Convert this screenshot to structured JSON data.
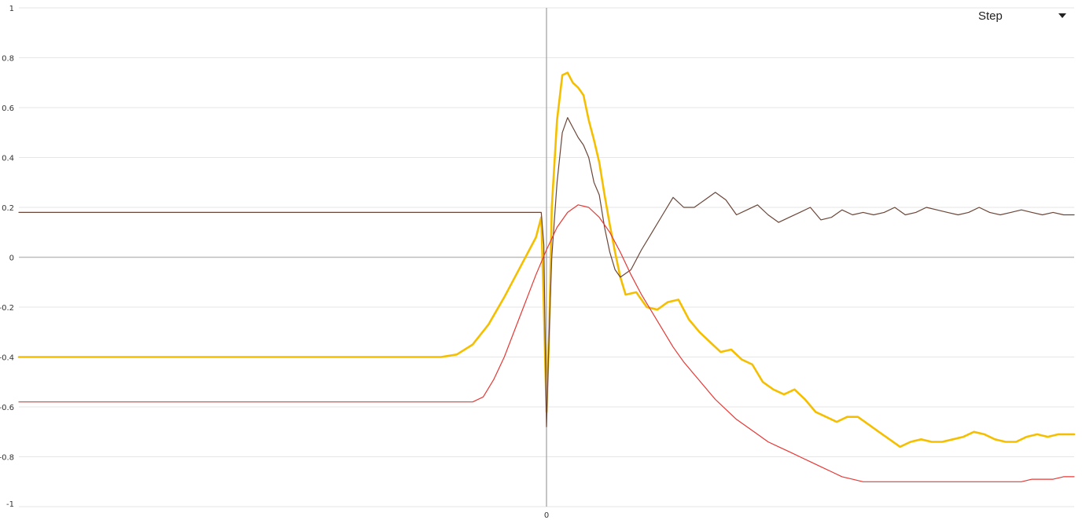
{
  "controls": {
    "mode_label": "Step",
    "dropdown_icon": "chevron-down-icon"
  },
  "chart_data": {
    "type": "line",
    "title": "",
    "xlabel": "",
    "ylabel": "",
    "ylim": [
      -1,
      1
    ],
    "yticks": [
      "1",
      "0.8",
      "0.6",
      "0.4",
      "0.2",
      "0",
      "-0.2",
      "-0.4",
      "-0.6",
      "-0.8",
      "-1"
    ],
    "xticks": [
      "0"
    ],
    "grid": true,
    "colors": {
      "yellow": "#f5bf00",
      "brown": "#6b4638",
      "red": "#e53935",
      "grid": "#e6e6e6",
      "zero_line": "#bdbdbd",
      "vertical_axis": "#9e9e9e"
    },
    "series": [
      {
        "color": "yellow",
        "values": [
          [
            -100,
            -0.4
          ],
          [
            -20,
            -0.4
          ],
          [
            -17,
            -0.39
          ],
          [
            -14,
            -0.35
          ],
          [
            -11,
            -0.27
          ],
          [
            -8,
            -0.16
          ],
          [
            -5,
            -0.04
          ],
          [
            -2,
            0.08
          ],
          [
            -1,
            0.16
          ],
          [
            -0.5,
            -0.2
          ],
          [
            0,
            -0.62
          ],
          [
            0.5,
            -0.3
          ],
          [
            1,
            0.2
          ],
          [
            2,
            0.55
          ],
          [
            3,
            0.73
          ],
          [
            4,
            0.74
          ],
          [
            5,
            0.7
          ],
          [
            6,
            0.68
          ],
          [
            7,
            0.65
          ],
          [
            8,
            0.55
          ],
          [
            9,
            0.47
          ],
          [
            10,
            0.38
          ],
          [
            11,
            0.25
          ],
          [
            12,
            0.13
          ],
          [
            13,
            0.02
          ],
          [
            14,
            -0.08
          ],
          [
            15,
            -0.15
          ],
          [
            17,
            -0.14
          ],
          [
            19,
            -0.2
          ],
          [
            21,
            -0.21
          ],
          [
            23,
            -0.18
          ],
          [
            25,
            -0.17
          ],
          [
            27,
            -0.25
          ],
          [
            29,
            -0.3
          ],
          [
            31,
            -0.34
          ],
          [
            33,
            -0.38
          ],
          [
            35,
            -0.37
          ],
          [
            37,
            -0.41
          ],
          [
            39,
            -0.43
          ],
          [
            41,
            -0.5
          ],
          [
            43,
            -0.53
          ],
          [
            45,
            -0.55
          ],
          [
            47,
            -0.53
          ],
          [
            49,
            -0.57
          ],
          [
            51,
            -0.62
          ],
          [
            53,
            -0.64
          ],
          [
            55,
            -0.66
          ],
          [
            57,
            -0.64
          ],
          [
            59,
            -0.64
          ],
          [
            61,
            -0.67
          ],
          [
            63,
            -0.7
          ],
          [
            65,
            -0.73
          ],
          [
            67,
            -0.76
          ],
          [
            69,
            -0.74
          ],
          [
            71,
            -0.73
          ],
          [
            73,
            -0.74
          ],
          [
            75,
            -0.74
          ],
          [
            77,
            -0.73
          ],
          [
            79,
            -0.72
          ],
          [
            81,
            -0.7
          ],
          [
            83,
            -0.71
          ],
          [
            85,
            -0.73
          ],
          [
            87,
            -0.74
          ],
          [
            89,
            -0.74
          ],
          [
            91,
            -0.72
          ],
          [
            93,
            -0.71
          ],
          [
            95,
            -0.72
          ],
          [
            97,
            -0.71
          ],
          [
            100,
            -0.71
          ]
        ]
      },
      {
        "color": "brown",
        "values": [
          [
            -100,
            0.18
          ],
          [
            -1,
            0.18
          ],
          [
            -0.5,
            0.05
          ],
          [
            0,
            -0.68
          ],
          [
            0.5,
            -0.3
          ],
          [
            1,
            0.0
          ],
          [
            2,
            0.3
          ],
          [
            3,
            0.5
          ],
          [
            4,
            0.56
          ],
          [
            5,
            0.52
          ],
          [
            6,
            0.48
          ],
          [
            7,
            0.45
          ],
          [
            8,
            0.4
          ],
          [
            9,
            0.3
          ],
          [
            10,
            0.25
          ],
          [
            11,
            0.12
          ],
          [
            12,
            0.02
          ],
          [
            13,
            -0.05
          ],
          [
            14,
            -0.08
          ],
          [
            16,
            -0.05
          ],
          [
            18,
            0.03
          ],
          [
            20,
            0.1
          ],
          [
            22,
            0.17
          ],
          [
            24,
            0.24
          ],
          [
            26,
            0.2
          ],
          [
            28,
            0.2
          ],
          [
            30,
            0.23
          ],
          [
            32,
            0.26
          ],
          [
            34,
            0.23
          ],
          [
            36,
            0.17
          ],
          [
            38,
            0.19
          ],
          [
            40,
            0.21
          ],
          [
            42,
            0.17
          ],
          [
            44,
            0.14
          ],
          [
            46,
            0.16
          ],
          [
            48,
            0.18
          ],
          [
            50,
            0.2
          ],
          [
            52,
            0.15
          ],
          [
            54,
            0.16
          ],
          [
            56,
            0.19
          ],
          [
            58,
            0.17
          ],
          [
            60,
            0.18
          ],
          [
            62,
            0.17
          ],
          [
            64,
            0.18
          ],
          [
            66,
            0.2
          ],
          [
            68,
            0.17
          ],
          [
            70,
            0.18
          ],
          [
            72,
            0.2
          ],
          [
            74,
            0.19
          ],
          [
            76,
            0.18
          ],
          [
            78,
            0.17
          ],
          [
            80,
            0.18
          ],
          [
            82,
            0.2
          ],
          [
            84,
            0.18
          ],
          [
            86,
            0.17
          ],
          [
            88,
            0.18
          ],
          [
            90,
            0.19
          ],
          [
            92,
            0.18
          ],
          [
            94,
            0.17
          ],
          [
            96,
            0.18
          ],
          [
            98,
            0.17
          ],
          [
            100,
            0.17
          ]
        ]
      },
      {
        "color": "red",
        "values": [
          [
            -100,
            -0.58
          ],
          [
            -14,
            -0.58
          ],
          [
            -12,
            -0.56
          ],
          [
            -10,
            -0.49
          ],
          [
            -8,
            -0.4
          ],
          [
            -6,
            -0.29
          ],
          [
            -4,
            -0.18
          ],
          [
            -2,
            -0.07
          ],
          [
            0,
            0.03
          ],
          [
            2,
            0.12
          ],
          [
            4,
            0.18
          ],
          [
            6,
            0.21
          ],
          [
            8,
            0.2
          ],
          [
            10,
            0.16
          ],
          [
            12,
            0.1
          ],
          [
            14,
            0.02
          ],
          [
            16,
            -0.07
          ],
          [
            18,
            -0.15
          ],
          [
            20,
            -0.22
          ],
          [
            22,
            -0.29
          ],
          [
            24,
            -0.36
          ],
          [
            26,
            -0.42
          ],
          [
            28,
            -0.47
          ],
          [
            30,
            -0.52
          ],
          [
            32,
            -0.57
          ],
          [
            34,
            -0.61
          ],
          [
            36,
            -0.65
          ],
          [
            38,
            -0.68
          ],
          [
            40,
            -0.71
          ],
          [
            42,
            -0.74
          ],
          [
            44,
            -0.76
          ],
          [
            46,
            -0.78
          ],
          [
            48,
            -0.8
          ],
          [
            50,
            -0.82
          ],
          [
            52,
            -0.84
          ],
          [
            54,
            -0.86
          ],
          [
            56,
            -0.88
          ],
          [
            58,
            -0.89
          ],
          [
            60,
            -0.9
          ],
          [
            62,
            -0.9
          ],
          [
            64,
            -0.9
          ],
          [
            66,
            -0.9
          ],
          [
            68,
            -0.9
          ],
          [
            70,
            -0.9
          ],
          [
            72,
            -0.9
          ],
          [
            74,
            -0.9
          ],
          [
            76,
            -0.9
          ],
          [
            78,
            -0.9
          ],
          [
            80,
            -0.9
          ],
          [
            82,
            -0.9
          ],
          [
            84,
            -0.9
          ],
          [
            86,
            -0.9
          ],
          [
            88,
            -0.9
          ],
          [
            90,
            -0.9
          ],
          [
            92,
            -0.89
          ],
          [
            94,
            -0.89
          ],
          [
            96,
            -0.89
          ],
          [
            98,
            -0.88
          ],
          [
            100,
            -0.88
          ]
        ]
      }
    ]
  }
}
